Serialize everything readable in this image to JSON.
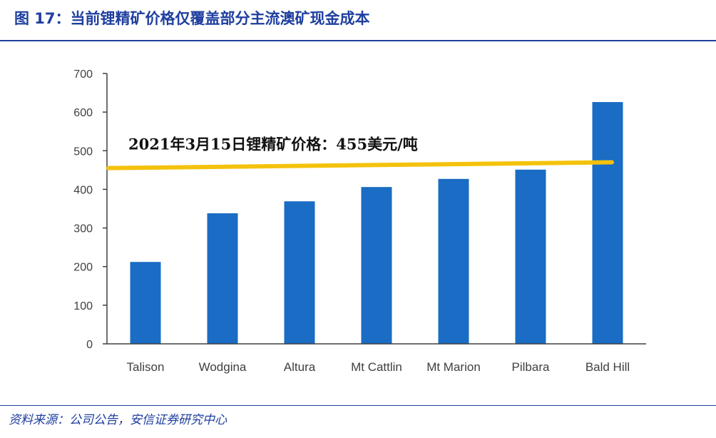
{
  "header": {
    "title": "图 17：当前锂精矿价格仅覆盖部分主流澳矿现金成本"
  },
  "footer": {
    "source": "资料来源：公司公告，安信证券研究中心"
  },
  "chart_data": {
    "type": "bar",
    "categories": [
      "Talison",
      "Wodgina",
      "Altura",
      "Mt Cattlin",
      "Mt Marion",
      "Pilbara",
      "Bald Hill"
    ],
    "values": [
      212,
      338,
      369,
      406,
      427,
      451,
      626
    ],
    "ylim": [
      0,
      700
    ],
    "yticks": [
      0,
      100,
      200,
      300,
      400,
      500,
      600,
      700
    ],
    "grid": false,
    "bar_color": "#1a6cc4",
    "reference_line": {
      "y_start": 455,
      "y_end": 470,
      "color": "#f4c20d",
      "label": "2021年3月15日锂精矿价格：455美元/吨"
    }
  }
}
